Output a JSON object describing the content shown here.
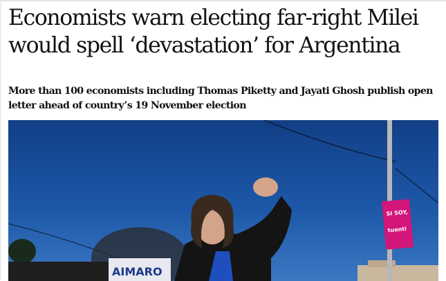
{
  "article": {
    "headline": "Economists warn electing far-right Milei would spell ‘devastation’ for Argentina",
    "standfirst": "More than 100 economists including Thomas Piketty and Jayati Ghosh publish open letter ahead of country’s 19 November election"
  },
  "photo": {
    "banner_text": "SI SOY,",
    "banner_brand": "tuenti",
    "sign_text": "AIMARO"
  }
}
